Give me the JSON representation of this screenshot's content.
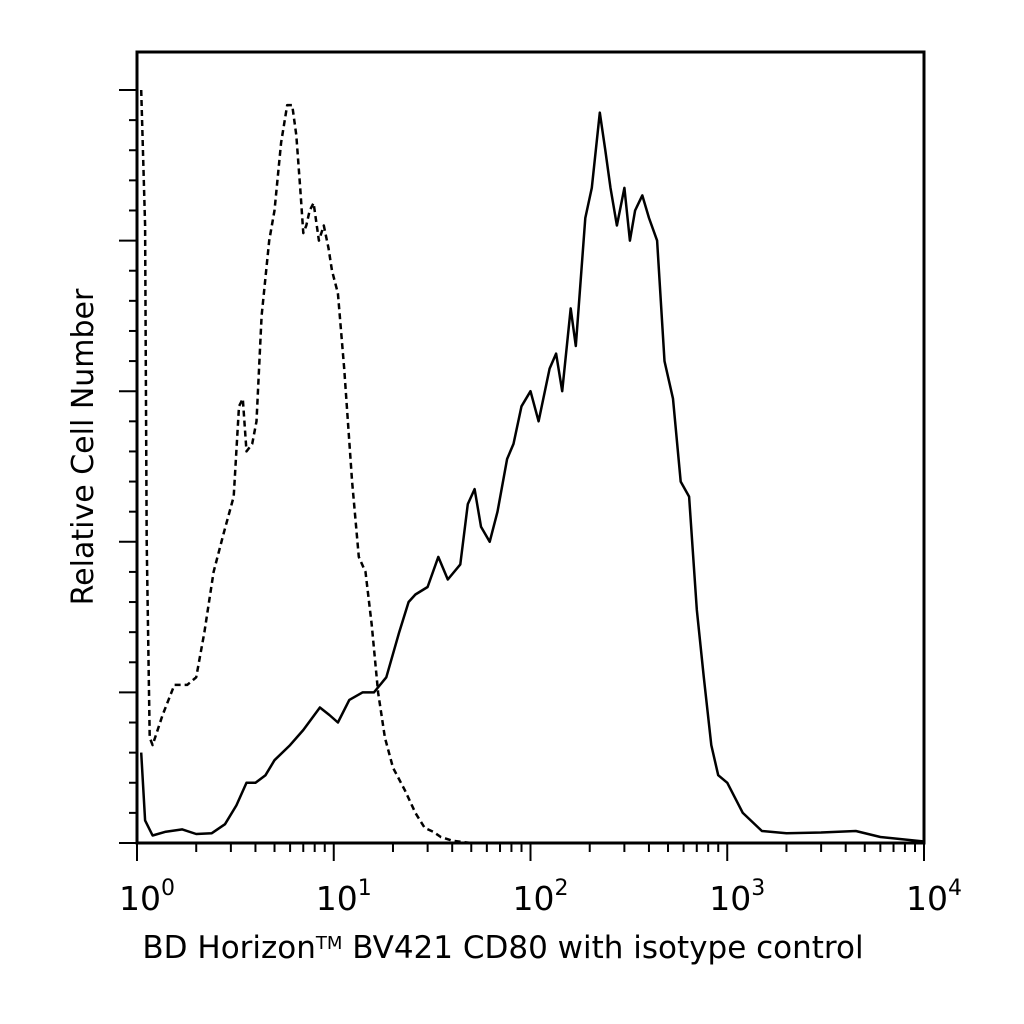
{
  "chart_data": {
    "type": "line",
    "xlabel": {
      "before": "BD Horizon",
      "tm": "TM",
      "after": " BV421 CD80 with isotype control"
    },
    "ylabel": "Relative Cell Number",
    "x_scale": "log",
    "xlim": [
      1,
      10000
    ],
    "ylim": [
      0,
      100
    ],
    "x_ticks": [
      {
        "base": "10",
        "exp": "0",
        "value": 1
      },
      {
        "base": "10",
        "exp": "1",
        "value": 10
      },
      {
        "base": "10",
        "exp": "2",
        "value": 100
      },
      {
        "base": "10",
        "exp": "3",
        "value": 1000
      },
      {
        "base": "10",
        "exp": "4",
        "value": 10000
      }
    ],
    "y_major_ticks": [
      0,
      20,
      40,
      60,
      80,
      100
    ],
    "series": [
      {
        "style": "dashed",
        "points": [
          [
            1.05,
            100
          ],
          [
            1.1,
            82
          ],
          [
            1.12,
            40
          ],
          [
            1.16,
            14
          ],
          [
            1.2,
            13
          ],
          [
            1.35,
            17
          ],
          [
            1.55,
            21
          ],
          [
            1.8,
            21
          ],
          [
            2.0,
            22
          ],
          [
            2.2,
            28
          ],
          [
            2.45,
            36
          ],
          [
            2.75,
            41
          ],
          [
            3.1,
            46
          ],
          [
            3.3,
            58
          ],
          [
            3.45,
            59
          ],
          [
            3.6,
            52
          ],
          [
            3.85,
            53
          ],
          [
            4.05,
            56
          ],
          [
            4.3,
            70
          ],
          [
            4.7,
            80
          ],
          [
            5.0,
            84
          ],
          [
            5.4,
            93
          ],
          [
            5.8,
            98
          ],
          [
            6.15,
            98
          ],
          [
            6.45,
            94
          ],
          [
            6.75,
            87
          ],
          [
            7.0,
            81
          ],
          [
            7.25,
            82
          ],
          [
            7.55,
            84
          ],
          [
            7.9,
            85
          ],
          [
            8.4,
            80
          ],
          [
            8.9,
            82
          ],
          [
            9.4,
            79
          ],
          [
            9.8,
            76
          ],
          [
            10.5,
            73
          ],
          [
            11.3,
            63
          ],
          [
            12.4,
            48
          ],
          [
            13.4,
            38
          ],
          [
            14.5,
            36
          ],
          [
            15.6,
            29
          ],
          [
            16.8,
            20
          ],
          [
            18.2,
            14
          ],
          [
            20.0,
            10
          ],
          [
            23.0,
            7
          ],
          [
            26.0,
            4
          ],
          [
            29.0,
            2
          ],
          [
            32.0,
            1.5
          ],
          [
            35.0,
            0.8
          ],
          [
            40.0,
            0.3
          ],
          [
            50.0,
            0
          ],
          [
            10000,
            0
          ]
        ]
      },
      {
        "style": "solid",
        "points": [
          [
            1.05,
            12
          ],
          [
            1.1,
            3
          ],
          [
            1.2,
            1
          ],
          [
            1.4,
            1.5
          ],
          [
            1.7,
            1.8
          ],
          [
            2.0,
            1.2
          ],
          [
            2.4,
            1.3
          ],
          [
            2.8,
            2.5
          ],
          [
            3.2,
            5
          ],
          [
            3.6,
            8
          ],
          [
            4.0,
            8
          ],
          [
            4.5,
            9
          ],
          [
            5.0,
            11
          ],
          [
            6.0,
            13
          ],
          [
            7.0,
            15
          ],
          [
            8.5,
            18
          ],
          [
            9.5,
            17
          ],
          [
            10.5,
            16
          ],
          [
            12.0,
            19
          ],
          [
            14.0,
            20
          ],
          [
            16.0,
            20
          ],
          [
            18.5,
            22
          ],
          [
            21.5,
            28
          ],
          [
            24.0,
            32
          ],
          [
            26.0,
            33
          ],
          [
            30.0,
            34
          ],
          [
            34.0,
            38
          ],
          [
            38.0,
            35
          ],
          [
            44.0,
            37
          ],
          [
            48.0,
            45
          ],
          [
            52.0,
            47
          ],
          [
            56.0,
            42
          ],
          [
            62.0,
            40
          ],
          [
            68.0,
            44
          ],
          [
            76.0,
            51
          ],
          [
            82.0,
            53
          ],
          [
            90.0,
            58
          ],
          [
            100.0,
            60
          ],
          [
            110.0,
            56
          ],
          [
            125.0,
            63
          ],
          [
            135.0,
            65
          ],
          [
            145.0,
            60
          ],
          [
            160.0,
            71
          ],
          [
            170.0,
            66
          ],
          [
            190.0,
            83
          ],
          [
            205.0,
            87
          ],
          [
            225.0,
            97
          ],
          [
            240.0,
            92
          ],
          [
            255.0,
            87
          ],
          [
            275.0,
            82
          ],
          [
            300.0,
            87
          ],
          [
            320.0,
            80
          ],
          [
            340.0,
            84
          ],
          [
            370.0,
            86
          ],
          [
            400.0,
            83
          ],
          [
            440.0,
            80
          ],
          [
            480.0,
            64
          ],
          [
            530.0,
            59
          ],
          [
            580.0,
            48
          ],
          [
            640.0,
            46
          ],
          [
            700.0,
            31
          ],
          [
            760.0,
            22
          ],
          [
            830.0,
            13
          ],
          [
            900.0,
            9
          ],
          [
            1000.0,
            8
          ],
          [
            1200.0,
            4
          ],
          [
            1500.0,
            1.6
          ],
          [
            2000.0,
            1.3
          ],
          [
            3000.0,
            1.4
          ],
          [
            4500.0,
            1.6
          ],
          [
            6000.0,
            0.8
          ],
          [
            10000.0,
            0.2
          ]
        ]
      }
    ]
  }
}
